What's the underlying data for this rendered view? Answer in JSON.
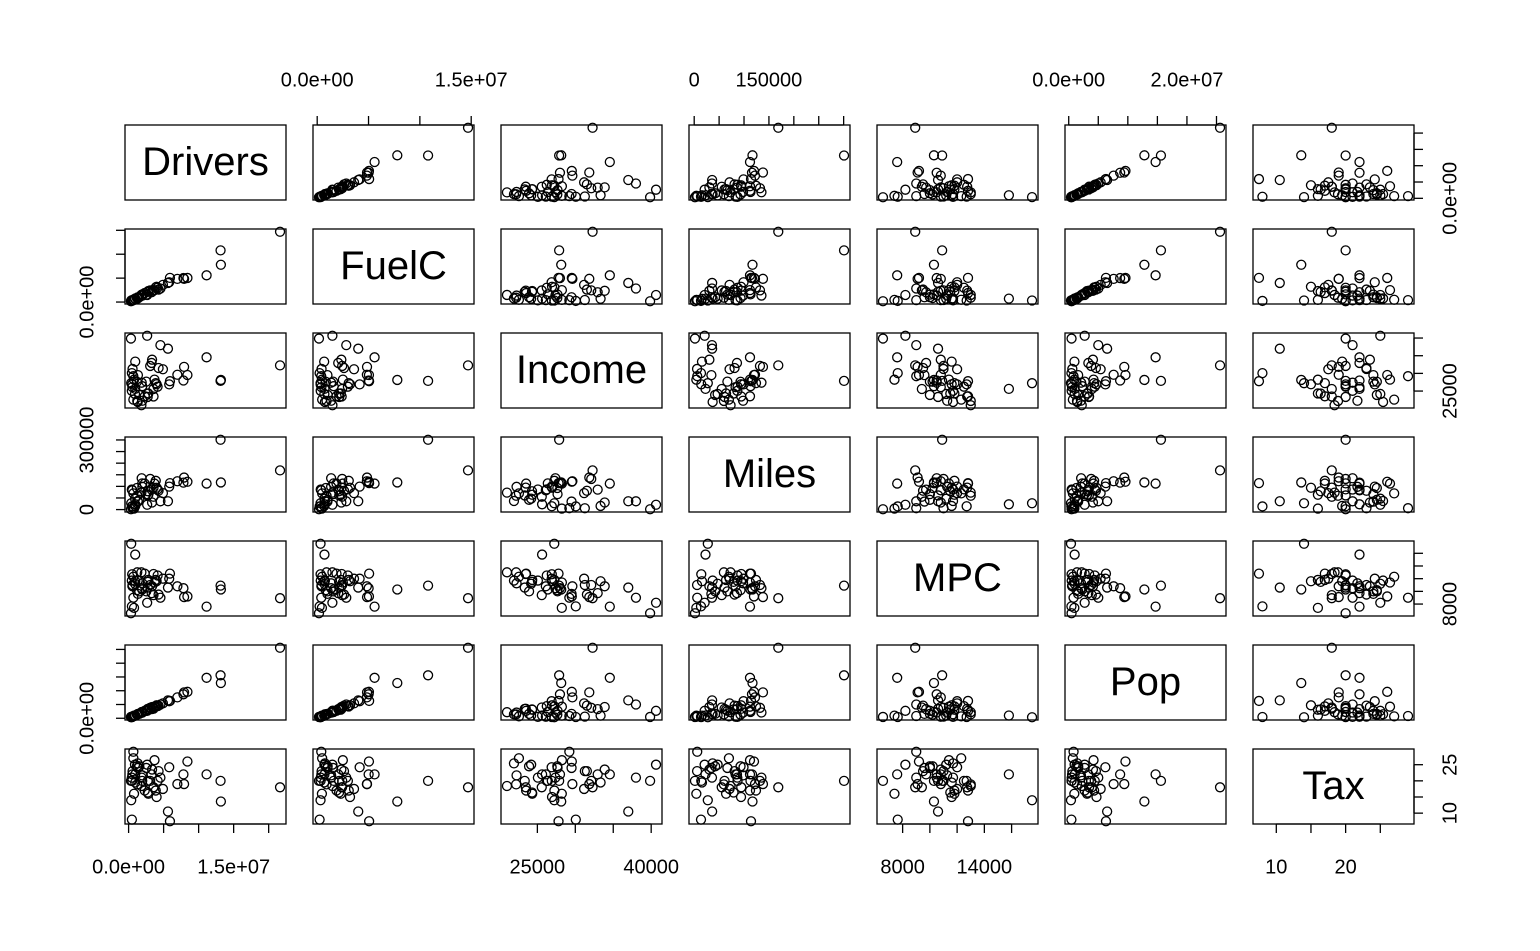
{
  "chart_data": {
    "type": "scatter_matrix",
    "variables": [
      {
        "name": "Drivers",
        "values": [
          3559897,
          472211,
          3550367,
          1961883,
          21623793,
          3287922,
          2650374,
          563669,
          337230,
          13176295,
          5903182,
          775844,
          913154,
          7922733,
          3997795,
          1947466,
          1865829,
          2740302,
          2722101,
          944462,
          3350419,
          4543328,
          6964052,
          3080716,
          1825505,
          3877693,
          681225,
          1185633,
          1331799,
          946900,
          5620000,
          1236770,
          11135000,
          5800000,
          458000,
          7830000,
          2300000,
          2520000,
          8400000,
          680000,
          2820000,
          540000,
          4140000,
          13130000,
          1530000,
          510000,
          4900000,
          4280000,
          1300000,
          3700000,
          372000
        ],
        "ticks": [
          0,
          5000000,
          10000000,
          15000000,
          20000000
        ],
        "x_tick_labels": [
          {
            "value": 0,
            "label": "0.0e+00"
          },
          {
            "value": 15000000,
            "label": "1.5e+07"
          }
        ],
        "y_tick_labels": [
          {
            "value": 0,
            "label": "0.0e+00"
          }
        ]
      },
      {
        "name": "FuelC",
        "values": [
          2382507,
          235400,
          2428430,
          1358174,
          14691753,
          2048664,
          1480700,
          425607,
          172099,
          7802192,
          5057560,
          458700,
          700300,
          4854000,
          3197000,
          1604000,
          1358000,
          2131000,
          2147000,
          708000,
          2353000,
          2831000,
          4838000,
          2434000,
          1485000,
          3074000,
          483000,
          837000,
          1000000,
          680000,
          3998000,
          911000,
          5588000,
          4134000,
          343000,
          5010000,
          1880000,
          1547000,
          5040000,
          397000,
          2293000,
          407000,
          2988000,
          10800000,
          1016000,
          329000,
          3587000,
          2612000,
          752000,
          2499000,
          325000
        ],
        "ticks": [
          0,
          5000000,
          10000000,
          15000000
        ],
        "x_tick_labels": [
          {
            "value": 0,
            "label": "0.0e+00"
          },
          {
            "value": 15000000,
            "label": "1.5e+07"
          }
        ],
        "y_tick_labels": [
          {
            "value": 0,
            "label": "0.0e+00"
          }
        ]
      },
      {
        "name": "Income",
        "values": [
          23471,
          30064,
          25578,
          22257,
          32275,
          32949,
          40640,
          31255,
          39858,
          28145,
          27790,
          28221,
          24180,
          31842,
          26933,
          26376,
          27374,
          24294,
          23334,
          25623,
          33872,
          37992,
          29612,
          32101,
          20993,
          27243,
          22569,
          27630,
          29506,
          33332,
          36983,
          22203,
          34547,
          26882,
          25068,
          27977,
          23517,
          27660,
          29539,
          29214,
          24321,
          26115,
          26239,
          27871,
          23907,
          26901,
          31162,
          31528,
          21915,
          28232,
          27230
        ],
        "ticks": [
          25000,
          30000,
          35000,
          40000
        ],
        "x_tick_labels": [
          {
            "value": 25000,
            "label": "25000"
          },
          {
            "value": 40000,
            "label": "40000"
          }
        ],
        "y_tick_labels": [
          {
            "value": 25000,
            "label": "25000"
          }
        ]
      },
      {
        "name": "Miles",
        "values": [
          94440,
          13628,
          55245,
          98132,
          168771,
          85854,
          20927,
          5758,
          1534,
          117000,
          114000,
          4300,
          47000,
          138000,
          94000,
          113000,
          135000,
          79000,
          60900,
          22700,
          30500,
          35700,
          122000,
          132000,
          73000,
          124000,
          69700,
          93000,
          34500,
          15600,
          36000,
          59600,
          112000,
          99000,
          86600,
          116000,
          112000,
          66600,
          120000,
          6100,
          64000,
          83000,
          87000,
          300767,
          42000,
          14200,
          71000,
          81000,
          37000,
          112000,
          27300
        ],
        "ticks": [
          0,
          50000,
          100000,
          150000,
          200000,
          250000,
          300000
        ],
        "x_tick_labels": [
          {
            "value": 0,
            "label": "0"
          },
          {
            "value": 150000,
            "label": "150000"
          }
        ],
        "y_tick_labels": [
          {
            "value": 0,
            "label": "0"
          },
          {
            "value": 300000,
            "label": "300000"
          }
        ]
      },
      {
        "name": "MPC",
        "values": [
          12737,
          7639,
          9411,
          11268,
          8924,
          9723,
          8202,
          11000,
          6556,
          10300,
          12800,
          7400,
          11200,
          9100,
          11600,
          10300,
          10500,
          11500,
          10600,
          15800,
          10800,
          9000,
          10800,
          11000,
          13000,
          11800,
          12300,
          10200,
          9600,
          11600,
          10600,
          13000,
          7600,
          12000,
          11700,
          10500,
          12800,
          10000,
          9200,
          9000,
          11800,
          10800,
          12500,
          10900,
          10000,
          12700,
          12000,
          9500,
          11700,
          11400,
          17500
        ],
        "ticks": [
          8000,
          10000,
          12000,
          14000,
          16000
        ],
        "x_tick_labels": [
          {
            "value": 8000,
            "label": "8000"
          },
          {
            "value": 14000,
            "label": "14000"
          }
        ],
        "y_tick_labels": [
          {
            "value": 8000,
            "label": "8000"
          }
        ]
      },
      {
        "name": "Pop",
        "values": [
          3451586,
          457728,
          3907526,
          2072622,
          25599275,
          3322455,
          2700000,
          610000,
          480000,
          12800000,
          6300000,
          950000,
          1000000,
          9400000,
          4700000,
          2300000,
          2100000,
          3200000,
          3400000,
          1000000,
          4100000,
          5000000,
          7600000,
          3800000,
          2200000,
          4300000,
          700000,
          1300000,
          1600000,
          970000,
          6500000,
          1400000,
          14700000,
          6200000,
          500000,
          8700000,
          2700000,
          2700000,
          9600000,
          820000,
          3100000,
          570000,
          4400000,
          15600000,
          1600000,
          480000,
          5400000,
          4600000,
          1450000,
          4200000,
          380000
        ],
        "ticks": [
          0,
          5000000,
          10000000,
          15000000,
          20000000,
          25000000
        ],
        "x_tick_labels": [
          {
            "value": 0,
            "label": "0.0e+00"
          },
          {
            "value": 20000000,
            "label": "2.0e+07"
          }
        ],
        "y_tick_labels": [
          {
            "value": 0,
            "label": "0.0e+00"
          }
        ]
      },
      {
        "name": "Tax",
        "values": [
          18,
          8,
          18,
          21.7,
          18,
          22,
          25,
          23,
          20,
          13.6,
          7.5,
          16,
          25,
          19,
          15,
          20,
          21,
          16.4,
          20,
          22,
          23.5,
          21,
          19,
          20,
          18.4,
          17,
          27,
          24.5,
          24,
          19.5,
          10.5,
          18.9,
          22,
          24.2,
          21,
          22,
          17,
          24,
          26,
          29,
          16,
          22,
          20,
          20,
          24.5,
          20,
          17.5,
          23,
          25.4,
          26.4,
          14
        ],
        "ticks": [
          10,
          15,
          20,
          25
        ],
        "x_tick_labels": [
          {
            "value": 10,
            "label": "10"
          },
          {
            "value": 20,
            "label": "20"
          }
        ],
        "y_tick_labels": [
          {
            "value": 10,
            "label": "10"
          },
          {
            "value": 25,
            "label": "25"
          }
        ]
      }
    ]
  }
}
